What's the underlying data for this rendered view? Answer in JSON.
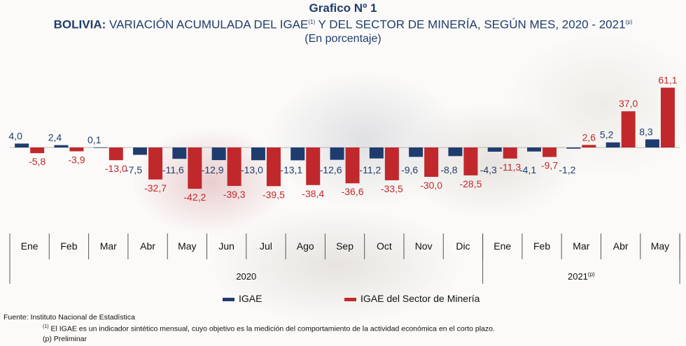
{
  "header": {
    "title": "Grafico Nº 1",
    "subtitle_bold": "BOLIVIA:",
    "subtitle_rest1": " VARIACIÓN ACUMULADA DEL IGAE",
    "subtitle_sup1": "(1)",
    "subtitle_rest2": " Y DEL SECTOR DE MINERÍA, SEGÚN MES, 2020 - 2021",
    "subtitle_sup2": "(p)",
    "unit_note": "(En porcentaje)"
  },
  "colors": {
    "igae": "#1f3c6e",
    "mineria": "#c0282c",
    "title": "#1f3c6e"
  },
  "chart_data": {
    "type": "bar",
    "categories": [
      "Ene",
      "Feb",
      "Mar",
      "Abr",
      "May",
      "Jun",
      "Jul",
      "Ago",
      "Sep",
      "Oct",
      "Nov",
      "Dic",
      "Ene",
      "Feb",
      "Mar",
      "Abr",
      "May"
    ],
    "series": [
      {
        "name": "IGAE",
        "values": [
          4.0,
          2.4,
          0.1,
          -7.5,
          -11.6,
          -12.9,
          -13.0,
          -13.1,
          -12.6,
          -11.2,
          -9.6,
          -8.8,
          -4.3,
          -4.1,
          -1.2,
          5.2,
          8.3
        ]
      },
      {
        "name": "IGAE del Sector de Minería",
        "values": [
          -5.8,
          -3.9,
          -13.0,
          -32.7,
          -42.2,
          -39.3,
          -39.5,
          -38.4,
          -36.6,
          -33.5,
          -30.0,
          -28.5,
          -11.3,
          -9.7,
          2.6,
          37.0,
          61.1
        ]
      }
    ],
    "value_labels_igae": [
      "4,0",
      "2,4",
      "0,1",
      "-7,5",
      "-11,6",
      "-12,9",
      "-13,0",
      "-13,1",
      "-12,6",
      "-11,2",
      "-9,6",
      "-8,8",
      "-4,3",
      "-4,1",
      "-1,2",
      "5,2",
      "8,3"
    ],
    "value_labels_mineria": [
      "-5,8",
      "-3,9",
      "-13,0",
      "-32,7",
      "-42,2",
      "-39,3",
      "-39,5",
      "-38,4",
      "-36,6",
      "-33,5",
      "-30,0",
      "-28,5",
      "-11,3",
      "-9,7",
      "2,6",
      "37,0",
      "61,1"
    ],
    "year_groups": [
      {
        "label": "2020",
        "sup": "",
        "months": 12
      },
      {
        "label": "2021",
        "sup": "(p)",
        "months": 5
      }
    ]
  },
  "legend": {
    "igae": "IGAE",
    "mineria": "IGAE del Sector de Minería"
  },
  "notes": {
    "source": "Fuente: Instituto Nacional de Estadística",
    "note1_sup": "(1)",
    "note1": " El IGAE es un indicador sintético mensual, cuyo objetivo es la medición del comportamiento de la actividad económica en el corto plazo.",
    "note2": "(p) Preliminar"
  }
}
